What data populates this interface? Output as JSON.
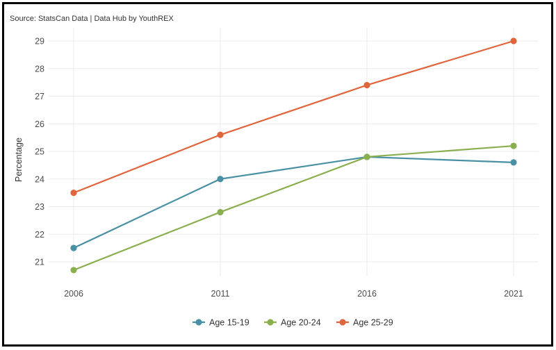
{
  "source_note": "Source: StatsCan Data | Data Hub by YouthREX",
  "chart_data": {
    "type": "line",
    "x": [
      "2006",
      "2011",
      "2016",
      "2021"
    ],
    "ylabel": "Percentage",
    "xlabel": "",
    "ylim": [
      20.5,
      29.4
    ],
    "yticks": [
      21,
      22,
      23,
      24,
      25,
      26,
      27,
      28,
      29
    ],
    "grid": true,
    "legend_position": "bottom",
    "series": [
      {
        "name": "Age 15-19",
        "color": "#4a90a4",
        "values": [
          21.5,
          24.0,
          24.8,
          24.6
        ]
      },
      {
        "name": "Age 20-24",
        "color": "#8aaf4e",
        "values": [
          20.7,
          22.8,
          24.8,
          25.2
        ]
      },
      {
        "name": "Age 25-29",
        "color": "#e0643c",
        "values": [
          23.5,
          25.6,
          27.4,
          29.0
        ]
      }
    ]
  }
}
